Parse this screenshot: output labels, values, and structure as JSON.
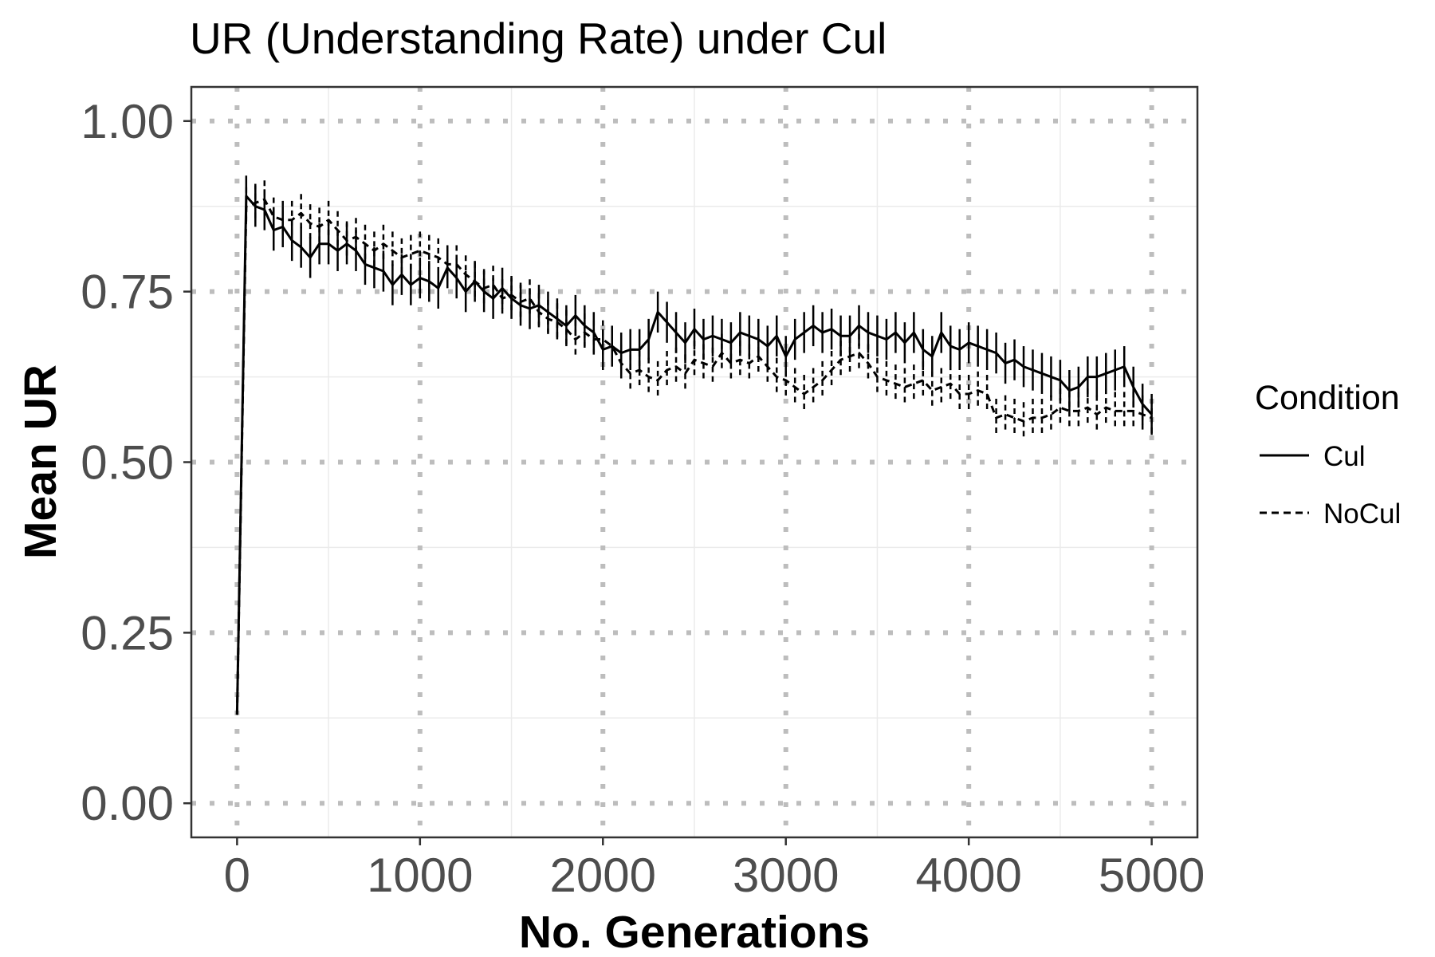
{
  "chart_data": {
    "type": "line",
    "title": "UR (Understanding Rate) under Cul",
    "xlabel": "No. Generations",
    "ylabel": "Mean UR",
    "xlim": [
      -250,
      5250
    ],
    "ylim": [
      -0.05,
      1.05
    ],
    "xticks": [
      0,
      1000,
      2000,
      3000,
      4000,
      5000
    ],
    "xtick_labels": [
      "0",
      "1000",
      "2000",
      "3000",
      "4000",
      "5000"
    ],
    "yticks": [
      0,
      0.25,
      0.5,
      0.75,
      1.0
    ],
    "ytick_labels": [
      "0.00",
      "0.25",
      "0.50",
      "0.75",
      "1.00"
    ],
    "grid": true,
    "major_grid_style": "dotted",
    "legend": {
      "title": "Condition",
      "placement": "right"
    },
    "series": [
      {
        "name": "Cul",
        "linestyle": "solid",
        "error_bar_half_width": 0.03,
        "x": [
          0,
          50,
          100,
          150,
          200,
          250,
          300,
          350,
          400,
          450,
          500,
          550,
          600,
          650,
          700,
          750,
          800,
          850,
          900,
          950,
          1000,
          1050,
          1100,
          1150,
          1200,
          1250,
          1300,
          1350,
          1400,
          1450,
          1500,
          1550,
          1600,
          1650,
          1700,
          1750,
          1800,
          1850,
          1900,
          1950,
          2000,
          2050,
          2100,
          2150,
          2200,
          2250,
          2300,
          2350,
          2400,
          2450,
          2500,
          2550,
          2600,
          2650,
          2700,
          2750,
          2800,
          2850,
          2900,
          2950,
          3000,
          3050,
          3100,
          3150,
          3200,
          3250,
          3300,
          3350,
          3400,
          3450,
          3500,
          3550,
          3600,
          3650,
          3700,
          3750,
          3800,
          3850,
          3900,
          3950,
          4000,
          4050,
          4100,
          4150,
          4200,
          4250,
          4300,
          4350,
          4400,
          4450,
          4500,
          4550,
          4600,
          4650,
          4700,
          4750,
          4800,
          4850,
          4900,
          4950,
          5000
        ],
        "y": [
          0.13,
          0.89,
          0.875,
          0.87,
          0.84,
          0.845,
          0.825,
          0.815,
          0.8,
          0.82,
          0.82,
          0.81,
          0.82,
          0.81,
          0.79,
          0.785,
          0.78,
          0.76,
          0.775,
          0.76,
          0.77,
          0.765,
          0.755,
          0.785,
          0.77,
          0.75,
          0.765,
          0.75,
          0.74,
          0.755,
          0.74,
          0.73,
          0.725,
          0.73,
          0.72,
          0.71,
          0.7,
          0.715,
          0.7,
          0.69,
          0.665,
          0.67,
          0.66,
          0.665,
          0.665,
          0.68,
          0.72,
          0.705,
          0.69,
          0.675,
          0.695,
          0.68,
          0.685,
          0.68,
          0.675,
          0.69,
          0.685,
          0.68,
          0.67,
          0.685,
          0.655,
          0.68,
          0.69,
          0.7,
          0.69,
          0.695,
          0.685,
          0.685,
          0.7,
          0.69,
          0.685,
          0.68,
          0.69,
          0.675,
          0.69,
          0.665,
          0.655,
          0.69,
          0.67,
          0.665,
          0.675,
          0.67,
          0.665,
          0.66,
          0.645,
          0.65,
          0.64,
          0.635,
          0.63,
          0.625,
          0.62,
          0.605,
          0.61,
          0.625,
          0.625,
          0.63,
          0.635,
          0.64,
          0.61,
          0.585,
          0.57
        ]
      },
      {
        "name": "NoCul",
        "linestyle": "dashed",
        "error_bar_half_width": 0.028,
        "x": [
          0,
          50,
          100,
          150,
          200,
          250,
          300,
          350,
          400,
          450,
          500,
          550,
          600,
          650,
          700,
          750,
          800,
          850,
          900,
          950,
          1000,
          1050,
          1100,
          1150,
          1200,
          1250,
          1300,
          1350,
          1400,
          1450,
          1500,
          1550,
          1600,
          1650,
          1700,
          1750,
          1800,
          1850,
          1900,
          1950,
          2000,
          2050,
          2100,
          2150,
          2200,
          2250,
          2300,
          2350,
          2400,
          2450,
          2500,
          2550,
          2600,
          2650,
          2700,
          2750,
          2800,
          2850,
          2900,
          2950,
          3000,
          3050,
          3100,
          3150,
          3200,
          3250,
          3300,
          3350,
          3400,
          3450,
          3500,
          3550,
          3600,
          3650,
          3700,
          3750,
          3800,
          3850,
          3900,
          3950,
          4000,
          4050,
          4100,
          4150,
          4200,
          4250,
          4300,
          4350,
          4400,
          4450,
          4500,
          4550,
          4600,
          4650,
          4700,
          4750,
          4800,
          4850,
          4900,
          4950,
          5000
        ],
        "y": [
          0.13,
          0.875,
          0.88,
          0.885,
          0.86,
          0.855,
          0.855,
          0.865,
          0.85,
          0.845,
          0.855,
          0.84,
          0.825,
          0.83,
          0.82,
          0.81,
          0.82,
          0.81,
          0.8,
          0.805,
          0.81,
          0.805,
          0.8,
          0.79,
          0.79,
          0.775,
          0.765,
          0.755,
          0.76,
          0.74,
          0.745,
          0.735,
          0.74,
          0.72,
          0.71,
          0.705,
          0.695,
          0.68,
          0.69,
          0.68,
          0.68,
          0.67,
          0.645,
          0.63,
          0.635,
          0.625,
          0.62,
          0.635,
          0.64,
          0.63,
          0.65,
          0.645,
          0.64,
          0.66,
          0.645,
          0.65,
          0.645,
          0.655,
          0.64,
          0.625,
          0.62,
          0.61,
          0.6,
          0.61,
          0.62,
          0.635,
          0.65,
          0.655,
          0.66,
          0.645,
          0.625,
          0.62,
          0.615,
          0.61,
          0.615,
          0.62,
          0.605,
          0.61,
          0.615,
          0.6,
          0.6,
          0.605,
          0.6,
          0.565,
          0.57,
          0.565,
          0.56,
          0.565,
          0.565,
          0.57,
          0.58,
          0.575,
          0.575,
          0.58,
          0.57,
          0.58,
          0.575,
          0.575,
          0.575,
          0.57,
          0.565
        ]
      }
    ]
  }
}
